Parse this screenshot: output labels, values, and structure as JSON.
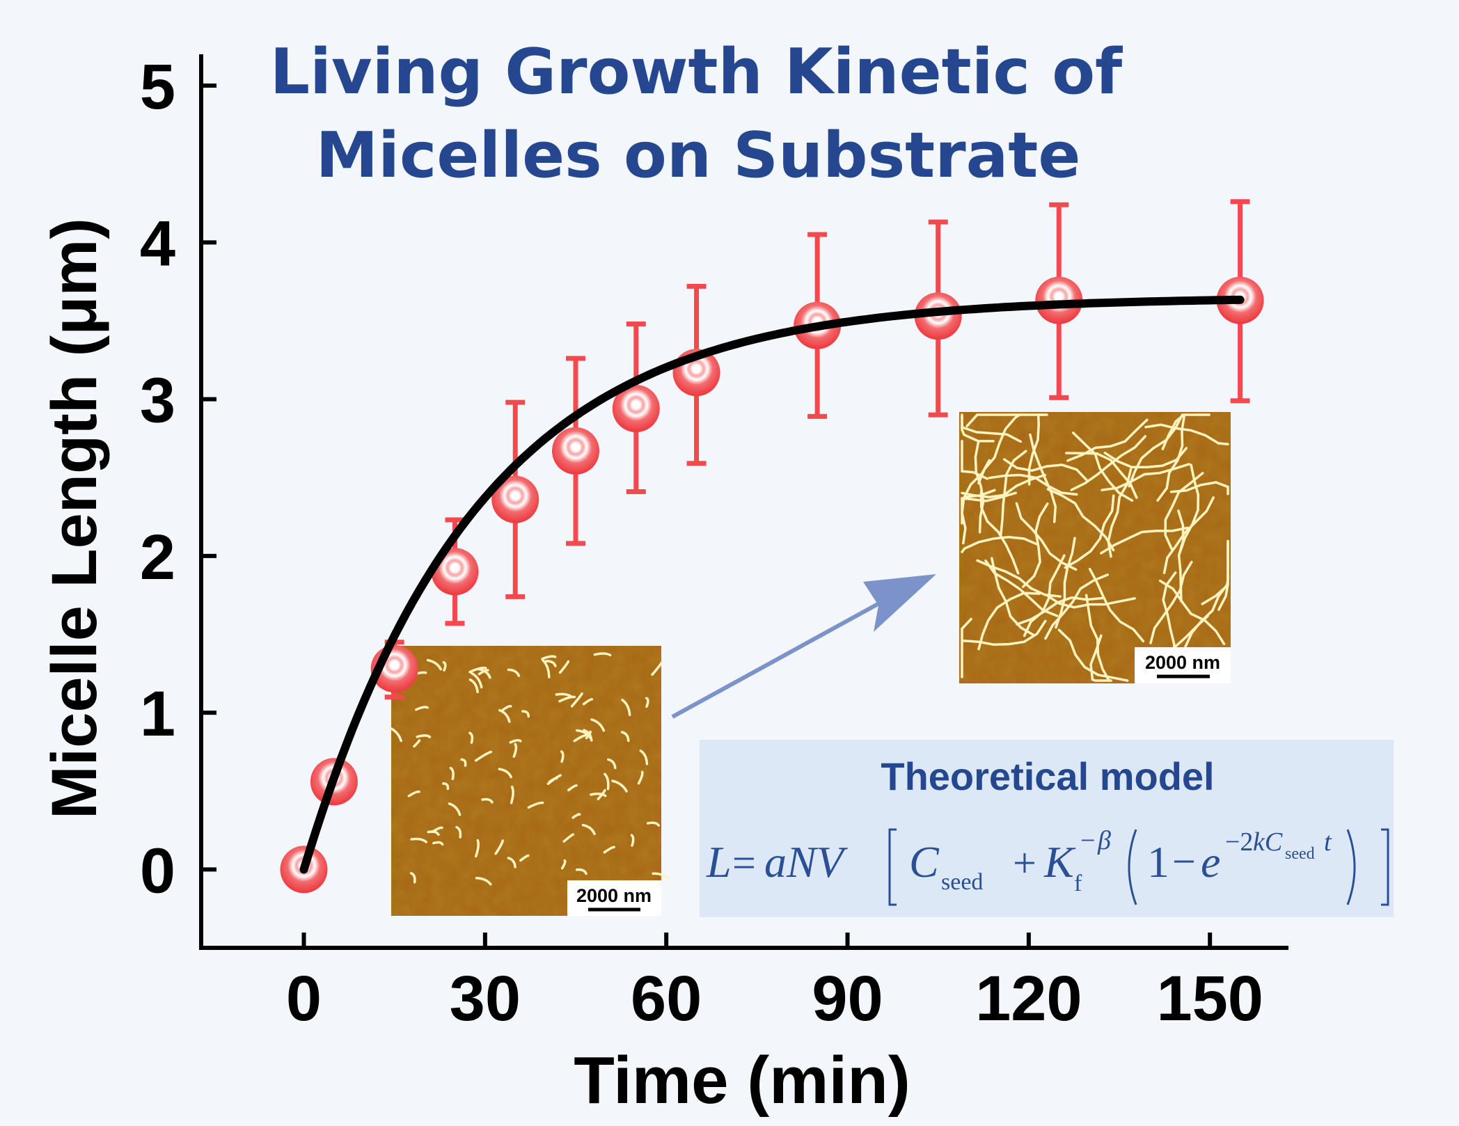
{
  "chart_data": {
    "type": "scatter",
    "title": "Living Growth Kinetic of Micelles on Substrate",
    "title_lines": [
      "Living Growth Kinetic of",
      "Micelles on Substrate"
    ],
    "xlabel": "Time (min)",
    "ylabel": "Micelle Length (μm)",
    "xlim": [
      -17,
      163
    ],
    "ylim": [
      -0.5,
      5.2
    ],
    "xticks": [
      0,
      30,
      60,
      90,
      120,
      150
    ],
    "yticks": [
      0,
      1,
      2,
      3,
      4,
      5
    ],
    "legend": "none",
    "grid": false,
    "series": [
      {
        "type": "scatter-errorbar",
        "color": "#f04a4e",
        "x": [
          0,
          5,
          15,
          25,
          35,
          45,
          55,
          65,
          85,
          105,
          125,
          155
        ],
        "y": [
          0,
          0.56,
          1.28,
          1.9,
          2.36,
          2.67,
          2.94,
          3.17,
          3.47,
          3.53,
          3.63,
          3.63
        ],
        "yerr_low": [
          0,
          0,
          0.18,
          0.33,
          0.62,
          0.59,
          0.53,
          0.58,
          0.58,
          0.63,
          0.62,
          0.64
        ],
        "yerr_high": [
          0,
          0,
          0.17,
          0.33,
          0.62,
          0.59,
          0.54,
          0.55,
          0.58,
          0.6,
          0.61,
          0.63
        ]
      },
      {
        "type": "line",
        "color": "#000000",
        "model": "exponential-fit",
        "plateau": 3.65,
        "rate_per_min": 0.035,
        "x_range": [
          0,
          155
        ]
      }
    ],
    "annotations": {
      "inset_early_scale": "2000 nm",
      "inset_late_scale": "2000 nm",
      "model_title": "Theoretical model"
    }
  },
  "colors": {
    "background": "#f3f7fc",
    "title": "#25478f",
    "marker": "#f04a4e",
    "arrow": "#7b93c8",
    "model_box": "#dce8f5",
    "afm_base": "#a76614"
  }
}
